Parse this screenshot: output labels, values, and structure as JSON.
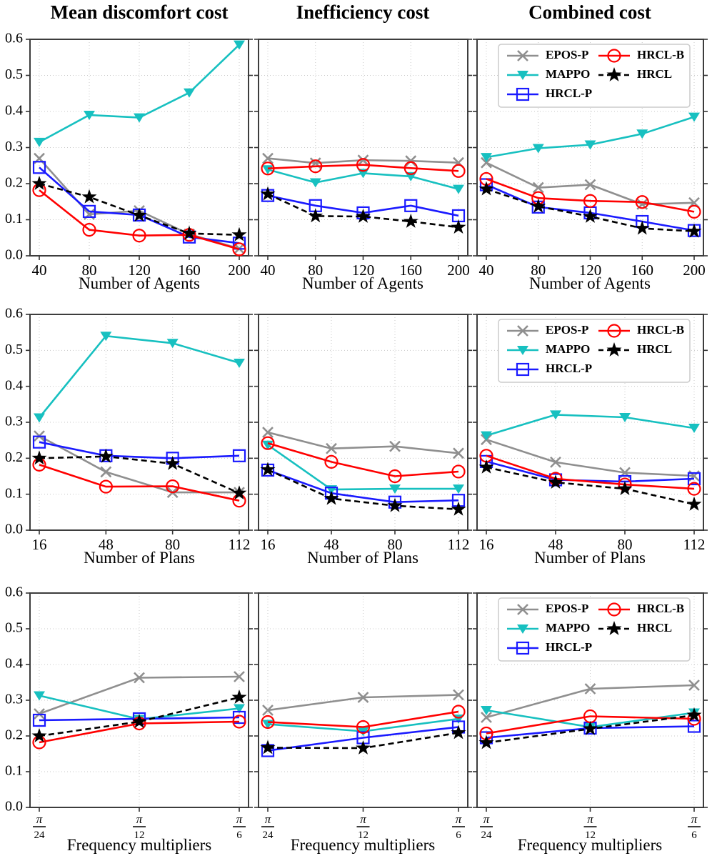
{
  "figure": {
    "y_ticks": [
      "0.0",
      "0.1",
      "0.2",
      "0.3",
      "0.4",
      "0.5",
      "0.6"
    ],
    "series_styles": {
      "EPOS-P": {
        "color": "#8f8f8f",
        "marker": "x",
        "line": "solid"
      },
      "MAPPO": {
        "color": "#17c0c0",
        "marker": "triangle-down",
        "line": "solid"
      },
      "HRCL-P": {
        "color": "#1a1aff",
        "marker": "square",
        "line": "solid"
      },
      "HRCL-B": {
        "color": "#ff0000",
        "marker": "circle",
        "line": "solid"
      },
      "HRCL": {
        "color": "#000000",
        "marker": "star",
        "line": "dashed"
      }
    },
    "legend": {
      "columns": [
        [
          "EPOS-P",
          "MAPPO",
          "HRCL-P"
        ],
        [
          "HRCL-B",
          "HRCL"
        ]
      ],
      "position": "upper-left-of-right-column-charts"
    },
    "grid": "dotted-lightgray"
  },
  "chart_data": [
    {
      "id": "mean-discomfort-vs-agents",
      "type": "line",
      "row": 0,
      "col": 0,
      "title": "Mean discomfort cost",
      "xlabel": "Number of Agents",
      "x": [
        "40",
        "80",
        "120",
        "160",
        "200"
      ],
      "x_frac": false,
      "ylim": [
        0.0,
        0.6
      ],
      "series": [
        {
          "name": "EPOS-P",
          "values": [
            0.27,
            0.115,
            0.125,
            0.06,
            0.02
          ]
        },
        {
          "name": "MAPPO",
          "values": [
            0.315,
            0.39,
            0.383,
            0.452,
            0.585
          ]
        },
        {
          "name": "HRCL-P",
          "values": [
            0.245,
            0.123,
            0.113,
            0.052,
            0.035
          ]
        },
        {
          "name": "HRCL-B",
          "values": [
            0.182,
            0.072,
            0.056,
            0.058,
            0.018
          ]
        },
        {
          "name": "HRCL",
          "values": [
            0.2,
            0.163,
            0.112,
            0.062,
            0.058
          ]
        }
      ]
    },
    {
      "id": "inefficiency-vs-agents",
      "type": "line",
      "row": 0,
      "col": 1,
      "title": "Inefficiency cost",
      "xlabel": "Number of Agents",
      "x": [
        "40",
        "80",
        "120",
        "160",
        "200"
      ],
      "x_frac": false,
      "ylim": [
        0.0,
        0.6
      ],
      "series": [
        {
          "name": "EPOS-P",
          "values": [
            0.27,
            0.257,
            0.265,
            0.263,
            0.258
          ]
        },
        {
          "name": "MAPPO",
          "values": [
            0.239,
            0.203,
            0.229,
            0.22,
            0.185
          ]
        },
        {
          "name": "HRCL-P",
          "values": [
            0.167,
            0.139,
            0.119,
            0.139,
            0.111
          ]
        },
        {
          "name": "HRCL-B",
          "values": [
            0.242,
            0.248,
            0.252,
            0.243,
            0.235
          ]
        },
        {
          "name": "HRCL",
          "values": [
            0.171,
            0.11,
            0.109,
            0.095,
            0.079
          ]
        }
      ]
    },
    {
      "id": "combined-vs-agents",
      "type": "line",
      "row": 0,
      "col": 2,
      "title": "Combined cost",
      "xlabel": "Number of Agents",
      "x": [
        "40",
        "80",
        "120",
        "160",
        "200"
      ],
      "x_frac": false,
      "ylim": [
        0.0,
        0.6
      ],
      "series": [
        {
          "name": "EPOS-P",
          "values": [
            0.258,
            0.189,
            0.197,
            0.143,
            0.147
          ]
        },
        {
          "name": "MAPPO",
          "values": [
            0.273,
            0.298,
            0.308,
            0.338,
            0.385
          ]
        },
        {
          "name": "HRCL-P",
          "values": [
            0.197,
            0.135,
            0.119,
            0.095,
            0.07
          ]
        },
        {
          "name": "HRCL-B",
          "values": [
            0.213,
            0.16,
            0.152,
            0.149,
            0.122
          ]
        },
        {
          "name": "HRCL",
          "values": [
            0.185,
            0.137,
            0.109,
            0.076,
            0.068
          ]
        }
      ]
    },
    {
      "id": "mean-discomfort-vs-plans",
      "type": "line",
      "row": 1,
      "col": 0,
      "title": "Mean discomfort cost",
      "xlabel": "Number of Plans",
      "x": [
        "16",
        "48",
        "80",
        "112"
      ],
      "x_frac": false,
      "ylim": [
        0.0,
        0.6
      ],
      "series": [
        {
          "name": "EPOS-P",
          "values": [
            0.262,
            0.162,
            0.105,
            0.105
          ]
        },
        {
          "name": "MAPPO",
          "values": [
            0.313,
            0.54,
            0.52,
            0.465
          ]
        },
        {
          "name": "HRCL-P",
          "values": [
            0.245,
            0.207,
            0.2,
            0.207
          ]
        },
        {
          "name": "HRCL-B",
          "values": [
            0.182,
            0.121,
            0.122,
            0.082
          ]
        },
        {
          "name": "HRCL",
          "values": [
            0.2,
            0.205,
            0.185,
            0.103
          ]
        }
      ]
    },
    {
      "id": "inefficiency-vs-plans",
      "type": "line",
      "row": 1,
      "col": 1,
      "title": "Inefficiency cost",
      "xlabel": "Number of Plans",
      "x": [
        "16",
        "48",
        "80",
        "112"
      ],
      "x_frac": false,
      "ylim": [
        0.0,
        0.6
      ],
      "series": [
        {
          "name": "EPOS-P",
          "values": [
            0.272,
            0.227,
            0.233,
            0.214
          ]
        },
        {
          "name": "MAPPO",
          "values": [
            0.237,
            0.113,
            0.115,
            0.115
          ]
        },
        {
          "name": "HRCL-P",
          "values": [
            0.167,
            0.103,
            0.078,
            0.083
          ]
        },
        {
          "name": "HRCL-B",
          "values": [
            0.242,
            0.19,
            0.15,
            0.163
          ]
        },
        {
          "name": "HRCL",
          "values": [
            0.168,
            0.088,
            0.068,
            0.058
          ]
        }
      ]
    },
    {
      "id": "combined-vs-plans",
      "type": "line",
      "row": 1,
      "col": 2,
      "title": "Combined cost",
      "xlabel": "Number of Plans",
      "x": [
        "16",
        "48",
        "80",
        "112"
      ],
      "x_frac": false,
      "ylim": [
        0.0,
        0.6
      ],
      "series": [
        {
          "name": "EPOS-P",
          "values": [
            0.252,
            0.189,
            0.16,
            0.151
          ]
        },
        {
          "name": "MAPPO",
          "values": [
            0.263,
            0.321,
            0.314,
            0.284
          ]
        },
        {
          "name": "HRCL-P",
          "values": [
            0.191,
            0.14,
            0.135,
            0.143
          ]
        },
        {
          "name": "HRCL-B",
          "values": [
            0.207,
            0.143,
            0.127,
            0.115
          ]
        },
        {
          "name": "HRCL",
          "values": [
            0.175,
            0.133,
            0.115,
            0.072
          ]
        }
      ]
    },
    {
      "id": "mean-discomfort-vs-frequency",
      "type": "line",
      "row": 2,
      "col": 0,
      "title": "Mean discomfort cost",
      "xlabel": "Frequency multipliers",
      "x": [
        "π/24",
        "π/12",
        "π/6"
      ],
      "x_frac": true,
      "ylim": [
        0.0,
        0.6
      ],
      "series": [
        {
          "name": "EPOS-P",
          "values": [
            0.262,
            0.363,
            0.366
          ]
        },
        {
          "name": "MAPPO",
          "values": [
            0.313,
            0.247,
            0.277
          ]
        },
        {
          "name": "HRCL-P",
          "values": [
            0.244,
            0.248,
            0.252
          ]
        },
        {
          "name": "HRCL-B",
          "values": [
            0.182,
            0.235,
            0.24
          ]
        },
        {
          "name": "HRCL",
          "values": [
            0.2,
            0.24,
            0.308
          ]
        }
      ]
    },
    {
      "id": "inefficiency-vs-frequency",
      "type": "line",
      "row": 2,
      "col": 1,
      "title": "Inefficiency cost",
      "xlabel": "Frequency multipliers",
      "x": [
        "π/24",
        "π/12",
        "π/6"
      ],
      "x_frac": true,
      "ylim": [
        0.0,
        0.6
      ],
      "series": [
        {
          "name": "EPOS-P",
          "values": [
            0.272,
            0.308,
            0.315
          ]
        },
        {
          "name": "MAPPO",
          "values": [
            0.233,
            0.213,
            0.248
          ]
        },
        {
          "name": "HRCL-P",
          "values": [
            0.159,
            0.195,
            0.225
          ]
        },
        {
          "name": "HRCL-B",
          "values": [
            0.239,
            0.225,
            0.268
          ]
        },
        {
          "name": "HRCL",
          "values": [
            0.167,
            0.166,
            0.209
          ]
        }
      ]
    },
    {
      "id": "combined-vs-frequency",
      "type": "line",
      "row": 2,
      "col": 2,
      "title": "Combined cost",
      "xlabel": "Frequency multipliers",
      "x": [
        "π/24",
        "π/12",
        "π/6"
      ],
      "x_frac": true,
      "ylim": [
        0.0,
        0.6
      ],
      "series": [
        {
          "name": "EPOS-P",
          "values": [
            0.252,
            0.332,
            0.342
          ]
        },
        {
          "name": "MAPPO",
          "values": [
            0.272,
            0.225,
            0.265
          ]
        },
        {
          "name": "HRCL-P",
          "values": [
            0.195,
            0.222,
            0.227
          ]
        },
        {
          "name": "HRCL-B",
          "values": [
            0.207,
            0.255,
            0.248
          ]
        },
        {
          "name": "HRCL",
          "values": [
            0.181,
            0.22,
            0.258
          ]
        }
      ]
    }
  ]
}
